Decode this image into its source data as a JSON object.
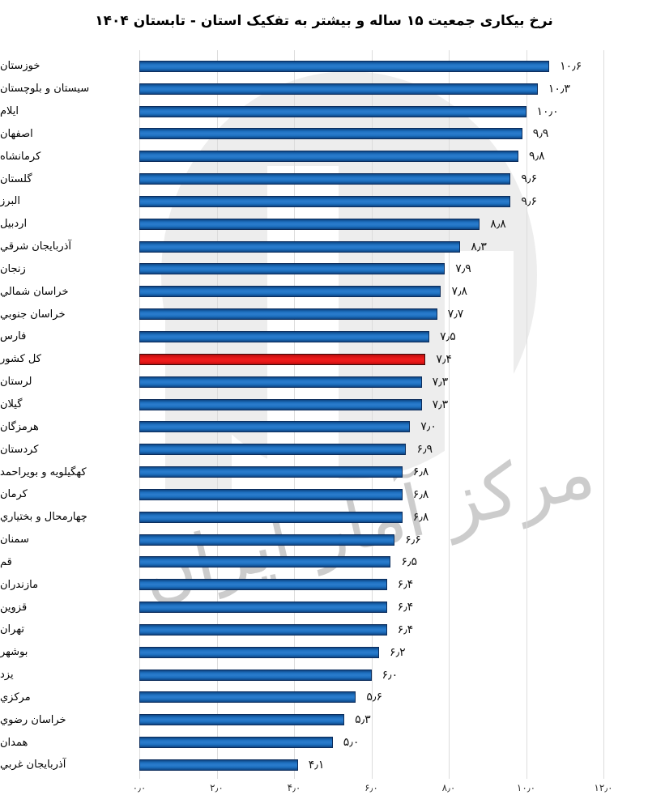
{
  "title": "نرخ بیکاری جمعیت ۱۵ ساله و بیشتر به تفکیک استان - تابستان ۱۴۰۴",
  "watermark": {
    "signature_text": "مرکز آمار ایران"
  },
  "colors": {
    "bar_fill": "#1e71c1",
    "bar_border": "#0c2d5c",
    "highlight_fill": "#e81717",
    "highlight_border": "#3a0c0c",
    "grid": "#dcdcdc",
    "watermark_gray": "#ededed",
    "signature_gray": "#c4c4c4"
  },
  "chart_data": {
    "type": "bar",
    "orientation": "horizontal",
    "title": "نرخ بیکاری جمعیت ۱۵ ساله و بیشتر به تفکیک استان - تابستان ۱۴۰۴",
    "xlabel": "",
    "ylabel": "",
    "xlim": [
      0,
      12
    ],
    "grid": true,
    "highlight_category": "کل کشور",
    "x_ticks": [
      {
        "value": 0,
        "label": "۰٫۰"
      },
      {
        "value": 2,
        "label": "۲٫۰"
      },
      {
        "value": 4,
        "label": "۴٫۰"
      },
      {
        "value": 6,
        "label": "۶٫۰"
      },
      {
        "value": 8,
        "label": "۸٫۰"
      },
      {
        "value": 10,
        "label": "۱۰٫۰"
      },
      {
        "value": 12,
        "label": "۱۲٫۰"
      }
    ],
    "rows": [
      {
        "label": "خوزستان",
        "value": 10.6,
        "value_label": "۱۰٫۶"
      },
      {
        "label": "سیستان و بلوچستان",
        "value": 10.3,
        "value_label": "۱۰٫۳"
      },
      {
        "label": "ایلام",
        "value": 10.0,
        "value_label": "۱۰٫۰"
      },
      {
        "label": "اصفهان",
        "value": 9.9,
        "value_label": "۹٫۹"
      },
      {
        "label": "کرمانشاه",
        "value": 9.8,
        "value_label": "۹٫۸"
      },
      {
        "label": "گلستان",
        "value": 9.6,
        "value_label": "۹٫۶"
      },
      {
        "label": "البرز",
        "value": 9.6,
        "value_label": "۹٫۶"
      },
      {
        "label": "اردبیل",
        "value": 8.8,
        "value_label": "۸٫۸"
      },
      {
        "label": "آذربايجان شرقي",
        "value": 8.3,
        "value_label": "۸٫۳"
      },
      {
        "label": "زنجان",
        "value": 7.9,
        "value_label": "۷٫۹"
      },
      {
        "label": "خراسان شمالي",
        "value": 7.8,
        "value_label": "۷٫۸"
      },
      {
        "label": "خراسان جنوبي",
        "value": 7.7,
        "value_label": "۷٫۷"
      },
      {
        "label": "فارس",
        "value": 7.5,
        "value_label": "۷٫۵"
      },
      {
        "label": "کل کشور",
        "value": 7.4,
        "value_label": "۷٫۴"
      },
      {
        "label": "لرستان",
        "value": 7.3,
        "value_label": "۷٫۳"
      },
      {
        "label": "گیلان",
        "value": 7.3,
        "value_label": "۷٫۳"
      },
      {
        "label": "هرمزگان",
        "value": 7.0,
        "value_label": "۷٫۰"
      },
      {
        "label": "کردستان",
        "value": 6.9,
        "value_label": "۶٫۹"
      },
      {
        "label": "کهگیلویه و بویراحمد",
        "value": 6.8,
        "value_label": "۶٫۸"
      },
      {
        "label": "کرمان",
        "value": 6.8,
        "value_label": "۶٫۸"
      },
      {
        "label": "چهارمحال و بختياري",
        "value": 6.8,
        "value_label": "۶٫۸"
      },
      {
        "label": "سمنان",
        "value": 6.6,
        "value_label": "۶٫۶"
      },
      {
        "label": "قم",
        "value": 6.5,
        "value_label": "۶٫۵"
      },
      {
        "label": "مازندران",
        "value": 6.4,
        "value_label": "۶٫۴"
      },
      {
        "label": "قزوین",
        "value": 6.4,
        "value_label": "۶٫۴"
      },
      {
        "label": "تهران",
        "value": 6.4,
        "value_label": "۶٫۴"
      },
      {
        "label": "بوشهر",
        "value": 6.2,
        "value_label": "۶٫۲"
      },
      {
        "label": "یزد",
        "value": 6.0,
        "value_label": "۶٫۰"
      },
      {
        "label": "مرکزي",
        "value": 5.6,
        "value_label": "۵٫۶"
      },
      {
        "label": "خراسان رضوي",
        "value": 5.3,
        "value_label": "۵٫۳"
      },
      {
        "label": "همدان",
        "value": 5.0,
        "value_label": "۵٫۰"
      },
      {
        "label": "آذربايجان غربي",
        "value": 4.1,
        "value_label": "۴٫۱"
      }
    ]
  }
}
